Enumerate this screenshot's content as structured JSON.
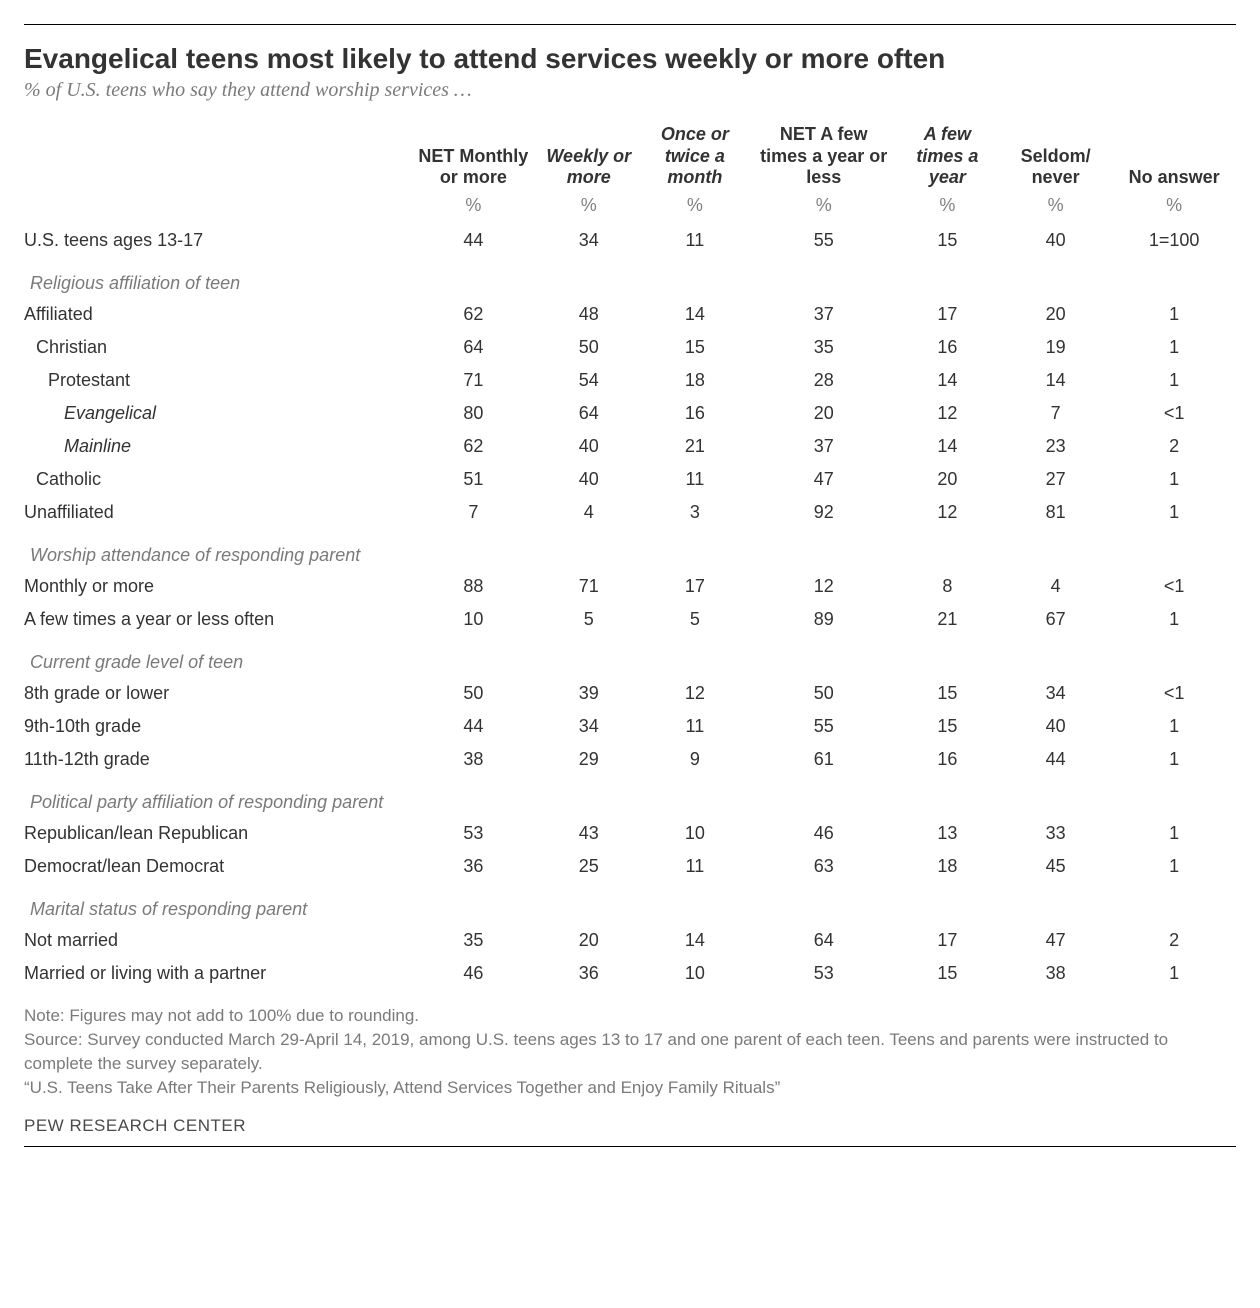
{
  "title": "Evangelical teens most likely to attend services weekly or more often",
  "subtitle": "% of U.S. teens who say they attend worship services …",
  "columns": {
    "c1": "NET Monthly or more",
    "c2": "Weekly or more",
    "c3": "Once or twice a month",
    "c4": "NET A few times a year or less",
    "c5": "A few times a year",
    "c6": "Seldom/ never",
    "c7": "No answer"
  },
  "pct": "%",
  "toprow": {
    "label": "U.S. teens ages 13-17",
    "v": [
      "44",
      "34",
      "11",
      "55",
      "15",
      "40",
      "1=100"
    ]
  },
  "sections": [
    {
      "header": "Religious affiliation of teen",
      "rows": [
        {
          "label": "Affiliated",
          "indent": 0,
          "v": [
            "62",
            "48",
            "14",
            "37",
            "17",
            "20",
            "1"
          ]
        },
        {
          "label": "Christian",
          "indent": 1,
          "v": [
            "64",
            "50",
            "15",
            "35",
            "16",
            "19",
            "1"
          ]
        },
        {
          "label": "Protestant",
          "indent": 2,
          "v": [
            "71",
            "54",
            "18",
            "28",
            "14",
            "14",
            "1"
          ]
        },
        {
          "label": "Evangelical",
          "indent": 3,
          "v": [
            "80",
            "64",
            "16",
            "20",
            "12",
            "7",
            "<1"
          ]
        },
        {
          "label": "Mainline",
          "indent": 3,
          "v": [
            "62",
            "40",
            "21",
            "37",
            "14",
            "23",
            "2"
          ]
        },
        {
          "label": "Catholic",
          "indent": 1,
          "v": [
            "51",
            "40",
            "11",
            "47",
            "20",
            "27",
            "1"
          ]
        },
        {
          "label": "Unaffiliated",
          "indent": 0,
          "v": [
            "7",
            "4",
            "3",
            "92",
            "12",
            "81",
            "1"
          ]
        }
      ]
    },
    {
      "header": "Worship attendance of responding parent",
      "rows": [
        {
          "label": "Monthly or more",
          "indent": 0,
          "v": [
            "88",
            "71",
            "17",
            "12",
            "8",
            "4",
            "<1"
          ]
        },
        {
          "label": "A few times a year or less often",
          "indent": 0,
          "v": [
            "10",
            "5",
            "5",
            "89",
            "21",
            "67",
            "1"
          ]
        }
      ]
    },
    {
      "header": "Current grade level of teen",
      "rows": [
        {
          "label": "8th grade or lower",
          "indent": 0,
          "v": [
            "50",
            "39",
            "12",
            "50",
            "15",
            "34",
            "<1"
          ]
        },
        {
          "label": "9th-10th grade",
          "indent": 0,
          "v": [
            "44",
            "34",
            "11",
            "55",
            "15",
            "40",
            "1"
          ]
        },
        {
          "label": "11th-12th grade",
          "indent": 0,
          "v": [
            "38",
            "29",
            "9",
            "61",
            "16",
            "44",
            "1"
          ]
        }
      ]
    },
    {
      "header": "Political party affiliation of responding parent",
      "rows": [
        {
          "label": "Republican/lean Republican",
          "indent": 0,
          "v": [
            "53",
            "43",
            "10",
            "46",
            "13",
            "33",
            "1"
          ]
        },
        {
          "label": "Democrat/lean Democrat",
          "indent": 0,
          "v": [
            "36",
            "25",
            "11",
            "63",
            "18",
            "45",
            "1"
          ]
        }
      ]
    },
    {
      "header": "Marital status of responding parent",
      "rows": [
        {
          "label": "Not married",
          "indent": 0,
          "v": [
            "35",
            "20",
            "14",
            "64",
            "17",
            "47",
            "2"
          ]
        },
        {
          "label": "Married or living with a partner",
          "indent": 0,
          "v": [
            "46",
            "36",
            "10",
            "53",
            "15",
            "38",
            "1"
          ]
        }
      ]
    }
  ],
  "notes": {
    "l1": "Note: Figures may not add to 100% due to rounding.",
    "l2": "Source: Survey conducted March 29-April 14, 2019, among U.S. teens ages 13 to 17 and one parent of each teen. Teens and parents were instructed to complete the survey separately.",
    "l3": "“U.S. Teens Take After Their Parents Religiously, Attend Services Together and Enjoy Family Rituals”"
  },
  "brand": "PEW RESEARCH CENTER",
  "style": {
    "italic_cols": [
      false,
      true,
      true,
      false,
      true,
      false,
      false
    ]
  }
}
